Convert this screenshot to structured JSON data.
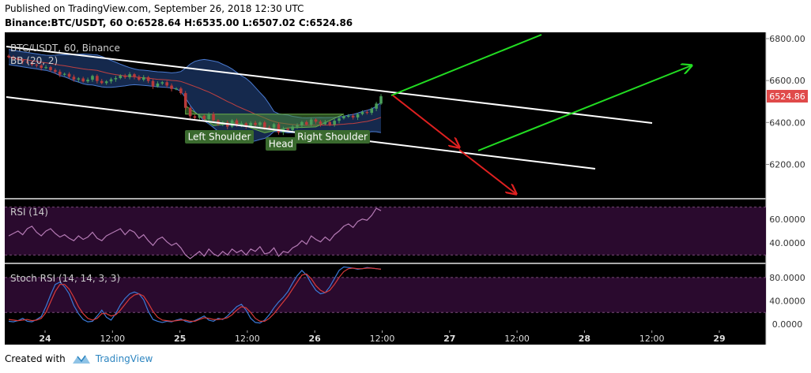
{
  "header": {
    "published_line": "Published on TradingView.com, September 26, 2018 12:30 UTC",
    "symbol": "Binance:BTC/USDT, 60",
    "ohlc": "O:6528.64 H:6535.00 L:6507.02 C:6524.86"
  },
  "footer": {
    "created_with": "Created with",
    "brand": "TradingView"
  },
  "colors": {
    "background": "#000000",
    "bull": "#4a9e5a",
    "bear": "#b83a3a",
    "bb_fill": "#1e3a6e",
    "price_badge": "#e04a4a",
    "rsi_fill": "#2a0a2e",
    "rsi_line": "#b47ab4",
    "stoch_k": "#3a7ad8",
    "stoch_d": "#d83a3a",
    "channel": "#ffffff",
    "bull_arrow": "#22dd22",
    "bear_arrow": "#e02020",
    "pattern_label_bg": "#3a6a2e"
  },
  "chart_data": [
    {
      "type": "candlestick",
      "panel": "price",
      "title": "BTC/USDT, 60, Binance",
      "indicator_label": "BB (20, 2)",
      "y_ticks": [
        6800,
        6600,
        6400,
        6200
      ],
      "y_tick_labels": [
        "6800.00",
        "6600.00",
        "6400.00",
        "6200.00"
      ],
      "ylim": [
        6040,
        6830
      ],
      "last_price": "6524.86",
      "x_tick_labels": [
        "24",
        "12:00",
        "25",
        "12:00",
        "26",
        "12:00",
        "27",
        "12:00",
        "28",
        "12:00",
        "29"
      ],
      "close": [
        6712,
        6705,
        6698,
        6690,
        6686,
        6676,
        6672,
        6660,
        6664,
        6650,
        6642,
        6628,
        6632,
        6618,
        6605,
        6610,
        6596,
        6604,
        6622,
        6598,
        6588,
        6596,
        6606,
        6612,
        6624,
        6616,
        6630,
        6618,
        6604,
        6616,
        6598,
        6572,
        6586,
        6592,
        6576,
        6560,
        6562,
        6540,
        6470,
        6430,
        6422,
        6432,
        6416,
        6440,
        6410,
        6392,
        6400,
        6380,
        6410,
        6388,
        6396,
        6382,
        6398,
        6388,
        6400,
        6376,
        6374,
        6392,
        6352,
        6370,
        6364,
        6380,
        6386,
        6402,
        6390,
        6414,
        6404,
        6392,
        6402,
        6390,
        6408,
        6420,
        6430,
        6432,
        6424,
        6440,
        6450,
        6446,
        6466,
        6490,
        6525
      ],
      "annotations": [
        "Left Shoulder",
        "Head",
        "Right Shoulder"
      ],
      "grid": false
    },
    {
      "type": "line",
      "panel": "rsi",
      "title": "RSI (14)",
      "y_ticks": [
        60,
        40
      ],
      "y_tick_labels": [
        "60.0000",
        "40.0000"
      ],
      "band": [
        70,
        30
      ],
      "ylim": [
        25,
        75
      ],
      "values": [
        46,
        48,
        50,
        47,
        52,
        54,
        49,
        46,
        50,
        52,
        48,
        45,
        47,
        44,
        42,
        46,
        43,
        45,
        49,
        44,
        42,
        46,
        48,
        50,
        52,
        47,
        51,
        49,
        44,
        47,
        42,
        38,
        43,
        45,
        41,
        38,
        40,
        36,
        30,
        27,
        30,
        33,
        29,
        35,
        31,
        29,
        33,
        30,
        35,
        32,
        34,
        30,
        35,
        33,
        37,
        31,
        32,
        36,
        29,
        33,
        32,
        36,
        38,
        42,
        39,
        46,
        43,
        41,
        45,
        42,
        47,
        50,
        54,
        56,
        53,
        58,
        60,
        59,
        63,
        69,
        67
      ]
    },
    {
      "type": "line",
      "panel": "stoch_rsi",
      "title": "Stoch RSI (14, 14, 3, 3)",
      "y_ticks": [
        80,
        40,
        0
      ],
      "y_tick_labels": [
        "80.0000",
        "40.0000",
        "0.0000"
      ],
      "band": [
        80,
        20
      ],
      "ylim": [
        -8,
        100
      ],
      "series": [
        {
          "values": [
            5,
            4,
            6,
            10,
            5,
            4,
            8,
            13,
            30,
            50,
            68,
            72,
            64,
            52,
            32,
            18,
            8,
            4,
            5,
            14,
            24,
            12,
            7,
            18,
            33,
            44,
            52,
            55,
            52,
            42,
            22,
            8,
            5,
            3,
            5,
            4,
            7,
            9,
            5,
            3,
            6,
            10,
            14,
            7,
            5,
            10,
            8,
            14,
            22,
            30,
            34,
            24,
            10,
            3,
            2,
            7,
            16,
            28,
            38,
            46,
            56,
            70,
            83,
            92,
            84,
            70,
            58,
            52,
            54,
            64,
            78,
            92,
            98,
            97,
            96,
            94,
            95,
            97,
            96,
            95,
            94
          ]
        },
        {
          "values": [
            8,
            7,
            6,
            7,
            8,
            6,
            7,
            10,
            20,
            38,
            56,
            68,
            68,
            60,
            46,
            30,
            18,
            10,
            7,
            10,
            18,
            18,
            14,
            16,
            24,
            34,
            44,
            50,
            52,
            48,
            36,
            22,
            12,
            7,
            6,
            5,
            6,
            7,
            7,
            5,
            5,
            8,
            11,
            10,
            8,
            8,
            9,
            11,
            16,
            24,
            30,
            28,
            20,
            10,
            5,
            5,
            10,
            18,
            28,
            38,
            48,
            60,
            72,
            84,
            86,
            78,
            66,
            58,
            54,
            58,
            68,
            80,
            90,
            95,
            96,
            95,
            95,
            96,
            96,
            95,
            94
          ]
        }
      ]
    }
  ]
}
